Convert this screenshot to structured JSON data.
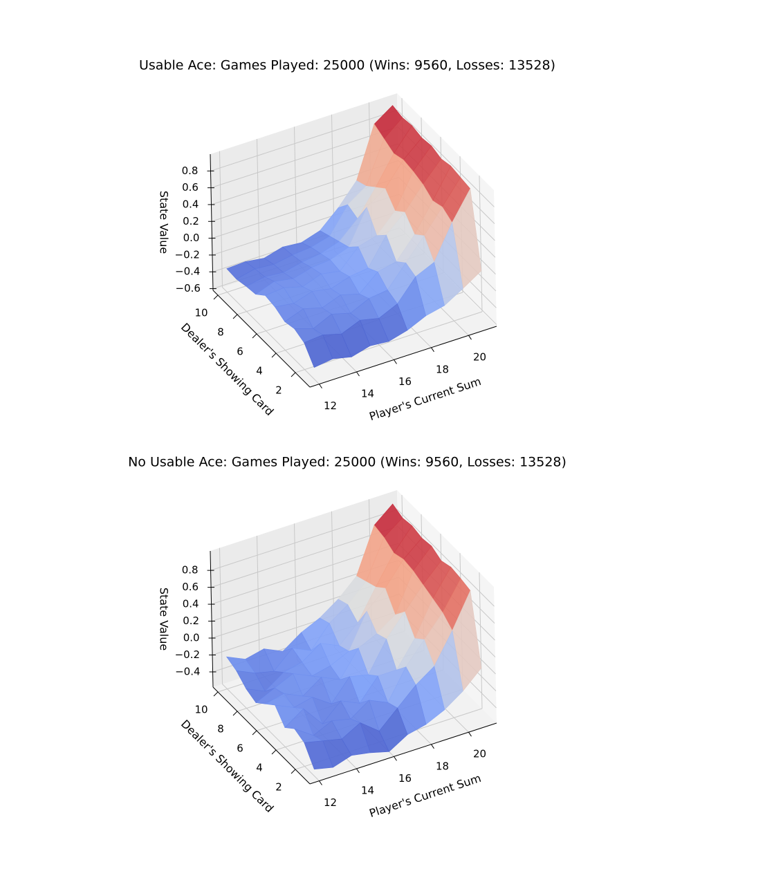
{
  "chart_data": [
    {
      "type": "surface",
      "title": "Usable Ace: Games Played: 25000 (Wins: 9560, Losses: 13528)",
      "xlabel": "Player's Current Sum",
      "ylabel": "Dealer's Showing Card",
      "zlabel": "State Value",
      "colormap": "coolwarm",
      "grid": true,
      "x": [
        12,
        13,
        14,
        15,
        16,
        17,
        18,
        19,
        20,
        21
      ],
      "y": [
        1,
        2,
        3,
        4,
        5,
        6,
        7,
        8,
        9,
        10
      ],
      "z": [
        [
          -0.48,
          -0.45,
          -0.5,
          -0.44,
          -0.46,
          -0.4,
          -0.3,
          -0.25,
          -0.12,
          0.02
        ],
        [
          -0.3,
          -0.28,
          -0.34,
          -0.25,
          -0.3,
          -0.2,
          0.05,
          0.15,
          0.55,
          0.88
        ],
        [
          -0.25,
          -0.32,
          -0.22,
          -0.28,
          -0.18,
          -0.15,
          0.1,
          0.35,
          0.62,
          0.9
        ],
        [
          -0.28,
          -0.2,
          -0.26,
          -0.18,
          -0.24,
          -0.05,
          0.0,
          0.25,
          0.58,
          0.92
        ],
        [
          -0.22,
          -0.25,
          -0.18,
          -0.22,
          -0.15,
          -0.12,
          0.2,
          0.4,
          0.66,
          0.89
        ],
        [
          -0.2,
          -0.18,
          -0.24,
          -0.16,
          -0.2,
          0.02,
          0.08,
          0.3,
          0.7,
          0.93
        ],
        [
          -0.3,
          -0.22,
          -0.26,
          -0.2,
          -0.18,
          -0.1,
          0.3,
          0.45,
          0.72,
          0.91
        ],
        [
          -0.32,
          -0.28,
          -0.3,
          -0.25,
          -0.22,
          -0.15,
          0.05,
          0.35,
          0.68,
          0.94
        ],
        [
          -0.35,
          -0.3,
          -0.32,
          -0.28,
          -0.26,
          -0.2,
          0.1,
          0.25,
          0.74,
          0.92
        ],
        [
          -0.34,
          -0.33,
          -0.36,
          -0.3,
          -0.32,
          -0.25,
          -0.05,
          0.2,
          0.8,
          0.95
        ]
      ],
      "xlim": [
        11.5,
        21.5
      ],
      "ylim": [
        0.5,
        10.5
      ],
      "zlim": [
        -0.62,
        1.0
      ],
      "xticks": [
        12,
        14,
        16,
        18,
        20
      ],
      "yticks": [
        2,
        4,
        6,
        8,
        10
      ],
      "zticks": [
        {
          "value": -0.6,
          "label": "−0.6"
        },
        {
          "value": -0.4,
          "label": "−0.4"
        },
        {
          "value": -0.2,
          "label": "−0.2"
        },
        {
          "value": 0.0,
          "label": "0.0"
        },
        0.2,
        0.4,
        0.6,
        0.8
      ]
    },
    {
      "type": "surface",
      "title": "No Usable Ace: Games Played: 25000 (Wins: 9560, Losses: 13528)",
      "xlabel": "Player's Current Sum",
      "ylabel": "Dealer's Showing Card",
      "zlabel": "State Value",
      "colormap": "coolwarm",
      "grid": true,
      "x": [
        12,
        13,
        14,
        15,
        16,
        17,
        18,
        19,
        20,
        21
      ],
      "y": [
        1,
        2,
        3,
        4,
        5,
        6,
        7,
        8,
        9,
        10
      ],
      "z": [
        [
          -0.5,
          -0.55,
          -0.48,
          -0.52,
          -0.58,
          -0.45,
          -0.4,
          -0.3,
          -0.15,
          0.05
        ],
        [
          -0.3,
          -0.35,
          -0.4,
          -0.28,
          -0.45,
          -0.25,
          -0.05,
          0.1,
          0.45,
          0.85
        ],
        [
          -0.25,
          -0.4,
          -0.3,
          -0.35,
          -0.2,
          -0.3,
          0.05,
          0.3,
          0.55,
          0.88
        ],
        [
          -0.35,
          -0.2,
          -0.45,
          -0.25,
          -0.35,
          -0.1,
          -0.1,
          0.2,
          0.6,
          0.9
        ],
        [
          -0.2,
          -0.3,
          -0.25,
          -0.4,
          -0.15,
          -0.2,
          0.15,
          0.4,
          0.65,
          0.86
        ],
        [
          -0.3,
          -0.25,
          -0.35,
          -0.2,
          -0.3,
          0.0,
          0.1,
          0.25,
          0.7,
          0.92
        ],
        [
          -0.4,
          -0.3,
          -0.2,
          -0.3,
          -0.25,
          -0.15,
          0.25,
          0.45,
          0.72,
          0.9
        ],
        [
          -0.35,
          -0.45,
          -0.3,
          -0.25,
          -0.1,
          -0.2,
          0.0,
          0.35,
          0.68,
          0.93
        ],
        [
          -0.25,
          -0.35,
          -0.4,
          -0.2,
          -0.3,
          -0.05,
          0.1,
          0.3,
          0.75,
          0.91
        ],
        [
          -0.2,
          -0.3,
          -0.25,
          -0.35,
          -0.2,
          -0.1,
          0.05,
          0.25,
          0.78,
          0.96
        ]
      ],
      "xlim": [
        11.5,
        21.5
      ],
      "ylim": [
        0.5,
        10.5
      ],
      "zlim": [
        -0.58,
        1.03
      ],
      "xticks": [
        12,
        14,
        16,
        18,
        20
      ],
      "yticks": [
        2,
        4,
        6,
        8,
        10
      ],
      "zticks": [
        {
          "value": -0.4,
          "label": "−0.4"
        },
        {
          "value": -0.2,
          "label": "−0.2"
        },
        {
          "value": 0.0,
          "label": "0.0"
        },
        0.2,
        0.4,
        0.6,
        0.8
      ]
    }
  ]
}
